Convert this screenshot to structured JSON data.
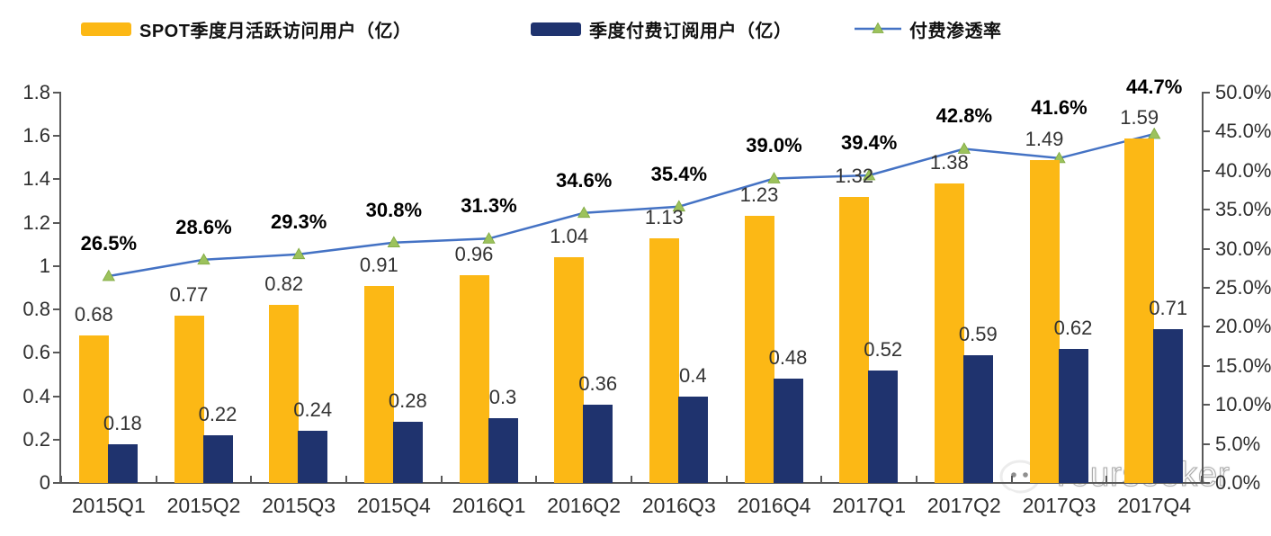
{
  "chart_data": {
    "type": "combo-bar-line",
    "title": "",
    "legend_position": "top",
    "grid": false,
    "categories": [
      "2015Q1",
      "2015Q2",
      "2015Q3",
      "2015Q4",
      "2016Q1",
      "2016Q2",
      "2016Q3",
      "2016Q4",
      "2017Q1",
      "2017Q2",
      "2017Q3",
      "2017Q4"
    ],
    "series": [
      {
        "name": "SPOT季度月活跃访问用户（亿）",
        "type": "bar",
        "axis": "left",
        "color": "#FCB815",
        "values": [
          0.68,
          0.77,
          0.82,
          0.91,
          0.96,
          1.04,
          1.13,
          1.23,
          1.32,
          1.38,
          1.49,
          1.59
        ],
        "labels": [
          "0.68",
          "0.77",
          "0.82",
          "0.91",
          "0.96",
          "1.04",
          "1.13",
          "1.23",
          "1.32",
          "1.38",
          "1.49",
          "1.59"
        ]
      },
      {
        "name": "季度付费订阅用户（亿）",
        "type": "bar",
        "axis": "left",
        "color": "#1F336E",
        "values": [
          0.18,
          0.22,
          0.24,
          0.28,
          0.3,
          0.36,
          0.4,
          0.48,
          0.52,
          0.59,
          0.62,
          0.71
        ],
        "labels": [
          "0.18",
          "0.22",
          "0.24",
          "0.28",
          "0.3",
          "0.36",
          "0.4",
          "0.48",
          "0.52",
          "0.59",
          "0.62",
          "0.71"
        ]
      },
      {
        "name": "付费渗透率",
        "type": "line",
        "axis": "right",
        "color": "#4472C4",
        "marker": "triangle",
        "marker_color": "#9CC25C",
        "marker_edge_color": "#7FA83F",
        "values": [
          26.5,
          28.6,
          29.3,
          30.8,
          31.3,
          34.6,
          35.4,
          39.0,
          39.4,
          42.8,
          41.6,
          44.7
        ],
        "labels": [
          "26.5%",
          "28.6%",
          "29.3%",
          "30.8%",
          "31.3%",
          "34.6%",
          "35.4%",
          "39.0%",
          "39.4%",
          "42.8%",
          "41.6%",
          "44.7%"
        ]
      }
    ],
    "left_axis": {
      "min": 0,
      "max": 1.8,
      "ticks": [
        "1.8",
        "1.6",
        "1.4",
        "1.2",
        "1",
        "0.8",
        "0.6",
        "0.4",
        "0.2",
        "0"
      ]
    },
    "right_axis": {
      "min": 0,
      "max": 50,
      "ticks": [
        "50.0%",
        "45.0%",
        "40.0%",
        "35.0%",
        "30.0%",
        "25.0%",
        "20.0%",
        "15.0%",
        "10.0%",
        "5.0%",
        "0.0%"
      ]
    },
    "axis_color": "#595959"
  },
  "watermark": {
    "text": "Yourseeker",
    "icon": "wechat-icon"
  }
}
